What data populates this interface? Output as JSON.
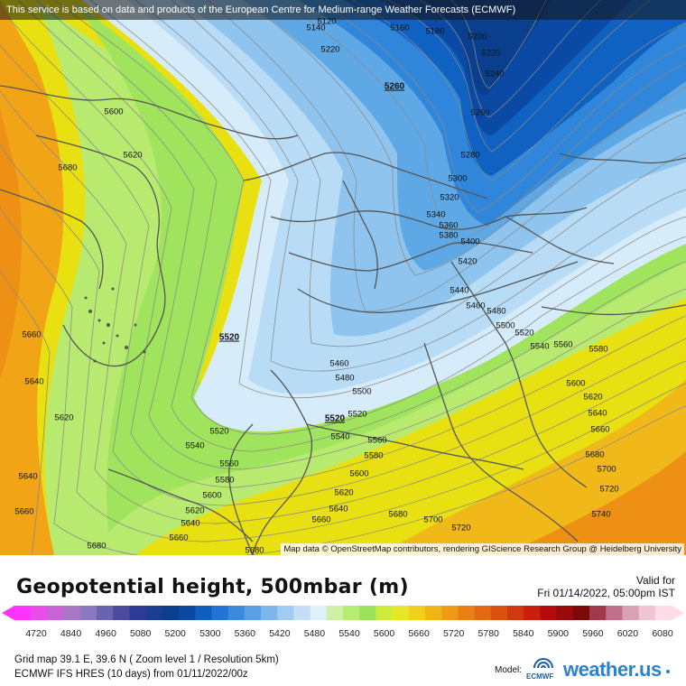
{
  "map": {
    "banner": "This service is based on data and products of the European Centre for Medium-range Weather Forecasts (ECMWF)",
    "attribution": "Map data © OpenStreetMap contributors, rendering GIScience Research Group @ Heidelberg University",
    "contour_labels": [
      {
        "text": "5120"
      },
      {
        "text": "5140"
      },
      {
        "text": "5160"
      },
      {
        "text": "5180"
      },
      {
        "text": "5200"
      },
      {
        "text": "5220"
      },
      {
        "text": "5220"
      },
      {
        "text": "5240"
      },
      {
        "text": "5260"
      },
      {
        "text": "5260"
      },
      {
        "text": "5280"
      },
      {
        "text": "5300"
      },
      {
        "text": "5320"
      },
      {
        "text": "5340"
      },
      {
        "text": "5360"
      },
      {
        "text": "5380"
      },
      {
        "text": "5400"
      },
      {
        "text": "5420"
      },
      {
        "text": "5440"
      },
      {
        "text": "5460"
      },
      {
        "text": "5480"
      },
      {
        "text": "5500"
      },
      {
        "text": "5520"
      },
      {
        "text": "5540"
      },
      {
        "text": "5560"
      },
      {
        "text": "5580"
      },
      {
        "text": "5600"
      },
      {
        "text": "5620"
      },
      {
        "text": "5640"
      },
      {
        "text": "5660"
      },
      {
        "text": "5680"
      },
      {
        "text": "5700"
      },
      {
        "text": "5720"
      },
      {
        "text": "5740"
      },
      {
        "text": "5600"
      },
      {
        "text": "5620"
      },
      {
        "text": "5680"
      },
      {
        "text": "5660"
      },
      {
        "text": "5640"
      },
      {
        "text": "5620"
      },
      {
        "text": "5640"
      },
      {
        "text": "5660"
      },
      {
        "text": "5680"
      },
      {
        "text": "5520"
      },
      {
        "text": "5460"
      },
      {
        "text": "5480"
      },
      {
        "text": "5500"
      },
      {
        "text": "5520"
      },
      {
        "text": "5520"
      },
      {
        "text": "5540"
      },
      {
        "text": "5560"
      },
      {
        "text": "5580"
      },
      {
        "text": "5600"
      },
      {
        "text": "5620"
      },
      {
        "text": "5640"
      },
      {
        "text": "5660"
      },
      {
        "text": "5680"
      },
      {
        "text": "5700"
      },
      {
        "text": "5720"
      },
      {
        "text": "5540"
      },
      {
        "text": "5560"
      },
      {
        "text": "5580"
      },
      {
        "text": "5600"
      },
      {
        "text": "5620"
      },
      {
        "text": "5640"
      },
      {
        "text": "5660"
      },
      {
        "text": "5680"
      },
      {
        "text": "5520"
      }
    ]
  },
  "legend": {
    "title": "Geopotential height, 500mbar (m)",
    "valid_label": "Valid for",
    "valid_time": "Fri 01/14/2022, 05:00pm IST",
    "ticks": [
      "4720",
      "4840",
      "4960",
      "5080",
      "5200",
      "5300",
      "5360",
      "5420",
      "5480",
      "5540",
      "5600",
      "5660",
      "5720",
      "5780",
      "5840",
      "5900",
      "5960",
      "6020",
      "6080"
    ],
    "colors": [
      "#ff33ff",
      "#e84de8",
      "#c864d6",
      "#a878c6",
      "#8a78c0",
      "#6a64b0",
      "#4a4aa0",
      "#2c3c98",
      "#1a3d92",
      "#0a3f8e",
      "#0b4aa4",
      "#0d5fc0",
      "#1f74d6",
      "#3a8ae0",
      "#5a9fe6",
      "#7cb6ec",
      "#a0cbf2",
      "#c4def6",
      "#def0fa",
      "#d0f0a8",
      "#b4ec74",
      "#9ae25a",
      "#ccec3c",
      "#e8e628",
      "#f0d01c",
      "#f0b416",
      "#ee9a14",
      "#ea8012",
      "#e46a12",
      "#dc5010",
      "#d4380e",
      "#c8200c",
      "#b40c0c",
      "#9a0a0a",
      "#7c0808",
      "#a03a4a",
      "#c0708a",
      "#dca0b4",
      "#f0c4d2",
      "#ffdde6"
    ],
    "grid_line": "Grid map 39.1 E, 39.6 N ( Zoom level 1 / Resolution 5km)",
    "model_line": "ECMWF IFS HRES (10 days) from 01/11/2022/00z",
    "model_label": "Model:",
    "ecmwf_label": "ECMWF",
    "brand": "weather.us"
  }
}
